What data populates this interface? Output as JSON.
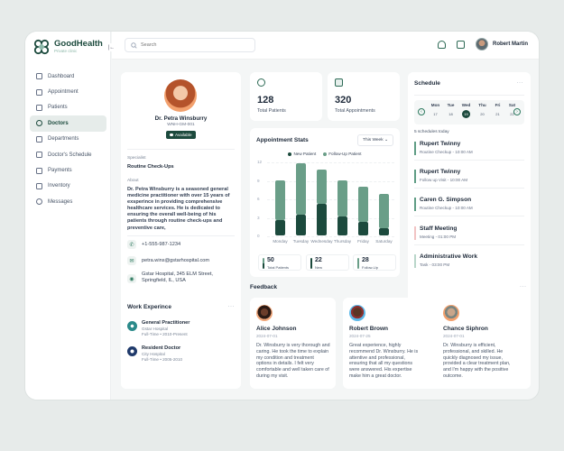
{
  "app": {
    "name": "GoodHealth",
    "tagline": "Private clinic"
  },
  "sidebar": {
    "items": [
      {
        "label": "Dashboard",
        "icon": "grid-icon"
      },
      {
        "label": "Appointment",
        "icon": "calendar-check-icon"
      },
      {
        "label": "Patients",
        "icon": "bed-icon"
      },
      {
        "label": "Doctors",
        "icon": "stethoscope-icon",
        "active": true
      },
      {
        "label": "Departments",
        "icon": "building-icon"
      },
      {
        "label": "Doctor's Schedule",
        "icon": "calendar-clock-icon"
      },
      {
        "label": "Payments",
        "icon": "credit-card-icon"
      },
      {
        "label": "Inventory",
        "icon": "box-icon"
      },
      {
        "label": "Messages",
        "icon": "chat-icon"
      }
    ]
  },
  "topbar": {
    "search_placeholder": "Search",
    "user_name": "Robert Martin"
  },
  "profile": {
    "name": "Dr. Petra Winsburry",
    "id": "WNH-GM-001",
    "status": "Available",
    "specialist_label": "Specialist",
    "specialist_value": "Routine Check-Ups",
    "about_label": "About",
    "about_text": "Dr. Petra Winsburry is a seasoned general medicine practitioner with over 15 years of exsperince in providing comprehensive healthcare services. He is dedicated to ensuring the overall well-being of his patients through routine check-ups and preventive care,",
    "phone": "+1-555-987-1234",
    "email": "petra.wins@gstarhospital.com",
    "address": "Gstar Hospital, 345 ELM Street, Springfield, IL, USA"
  },
  "work_experience": {
    "title": "Work Experince",
    "items": [
      {
        "title": "General Practitioner",
        "place": "Gstar Hospital",
        "meta": "Full-Time  •  2010-Present"
      },
      {
        "title": "Resident Doctor",
        "place": "City Hospital",
        "meta": "Full-Time  •  2005-2010"
      }
    ]
  },
  "stats": [
    {
      "value": "128",
      "label": "Total Patients"
    },
    {
      "value": "320",
      "label": "Total Appointments"
    }
  ],
  "appointment_stats": {
    "title": "Appointment Stats",
    "range": "This Week",
    "summary": [
      {
        "value": "50",
        "label": "Total Patients"
      },
      {
        "value": "22",
        "label": "New"
      },
      {
        "value": "28",
        "label": "Follow-Up"
      }
    ]
  },
  "chart_data": {
    "type": "bar",
    "stacked": true,
    "title": "Appointment Stats",
    "categories": [
      "Monday",
      "Tuesday",
      "Wednesday",
      "Thursday",
      "Friday",
      "Saturday"
    ],
    "series": [
      {
        "name": "New Patient",
        "color": "#1c4a3d",
        "values": [
          2.7,
          3.5,
          5.3,
          3.2,
          2.4,
          1.3
        ]
      },
      {
        "name": "Follow-Up Patient",
        "color": "#6a9e88",
        "values": [
          6.5,
          8.5,
          5.7,
          6.0,
          5.8,
          5.7
        ]
      }
    ],
    "yticks": [
      0,
      3,
      6,
      9,
      12
    ],
    "ylim": [
      0,
      12
    ],
    "grid": true,
    "legend_position": "top"
  },
  "schedule": {
    "title": "Schedule",
    "days": [
      {
        "name": "Mon",
        "date": "17"
      },
      {
        "name": "Tue",
        "date": "18"
      },
      {
        "name": "Wed",
        "date": "19",
        "selected": true
      },
      {
        "name": "Thu",
        "date": "20"
      },
      {
        "name": "Fri",
        "date": "21"
      },
      {
        "name": "Sat",
        "date": "22"
      }
    ],
    "count_text": "5 schedules today",
    "events": [
      {
        "title": "Rupert Twinny",
        "sub": "Routine Checkup - 10:00 AM",
        "color": "#5f9c84"
      },
      {
        "title": "Rupert Twinny",
        "sub": "Follow up Visit - 10:00 AM",
        "color": "#5f9c84"
      },
      {
        "title": "Caren G. Simpson",
        "sub": "Routine Checkup - 10:00 AM",
        "color": "#5f9c84"
      },
      {
        "title": "Staff Meeting",
        "sub": "Meeting - 01:00 PM",
        "color": "#f2c4c4"
      },
      {
        "title": "Administrative Work",
        "sub": "Task - 03:00 PM",
        "color": "#b9d6ca"
      }
    ]
  },
  "feedback": {
    "title": "Feedback",
    "items": [
      {
        "name": "Alice Johnson",
        "date": "2024-07-01",
        "text": "Dr. Winsburry is very thorough and caring. He took the time to explain my condition and treatment options in details. I felt very comfortable  and well taken care of during my visit."
      },
      {
        "name": "Robert Brown",
        "date": "2024-07-25",
        "text": "Great experience, highly recommend Dr. Winsburry. He is attentive and professional, ensuring that all my questions were answered. His expertise make him a great doctor."
      },
      {
        "name": "Chance Siphron",
        "date": "2024-07-01",
        "text": "Dr. Winsburry is efficient, professional, and skilled. He quickly diagnosed my issue, provided a clear treatment plan, and I'm happy with the positive outcome."
      }
    ]
  }
}
